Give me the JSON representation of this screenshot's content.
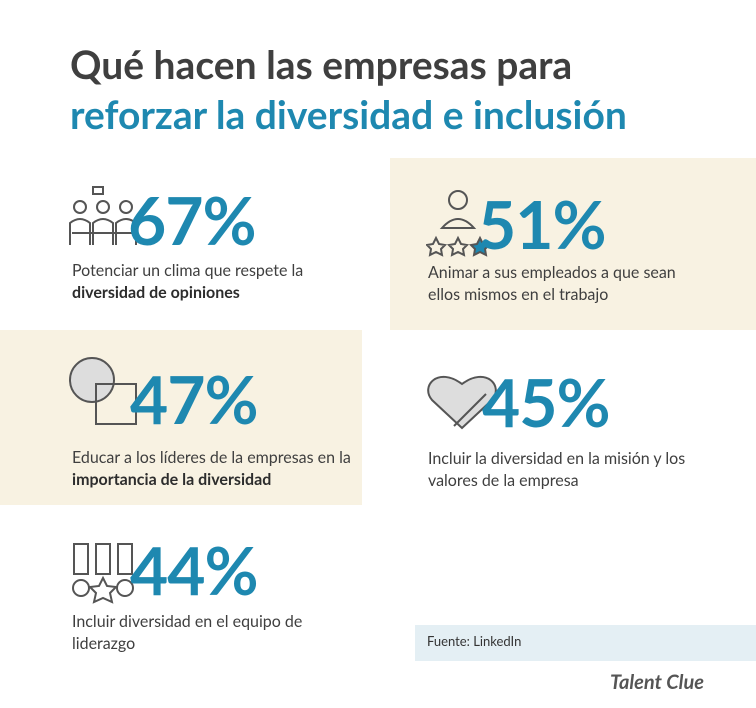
{
  "header": {
    "title_line1": "Qué hacen las empresas para",
    "title_line2": "reforzar la diversidad e inclusión"
  },
  "items": [
    {
      "value": "67%",
      "text": "Potenciar un clima que respete la ",
      "bold": "diversidad de opiniones"
    },
    {
      "value": "51%",
      "text": "Animar a sus empleados a que sean ellos mismos en el trabajo"
    },
    {
      "value": "47%",
      "text": "Educar a los líderes de la empresas en la ",
      "bold": "importancia de la diversidad"
    },
    {
      "value": "45%",
      "text": "Incluir la diversidad en la misión y los valores de la empresa"
    },
    {
      "value": "44%",
      "text": "Incluir diversidad en el equipo de liderazgo"
    }
  ],
  "source": "Fuente: LinkedIn",
  "logo": "Talent Clue"
}
